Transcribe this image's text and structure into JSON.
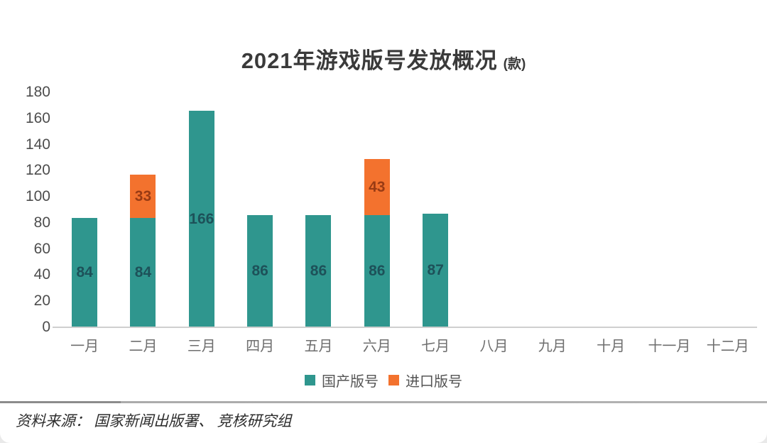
{
  "title": {
    "main": "2021年游戏版号发放概况",
    "unit": "(款)"
  },
  "colors": {
    "domestic": "#2F968E",
    "imported": "#F3722E",
    "domestic_label": "#1B4650",
    "imported_label": "#8A3210",
    "axis_line": "#CFCFCF"
  },
  "legend": [
    {
      "label": "国产版号",
      "color_key": "domestic"
    },
    {
      "label": "进口版号",
      "color_key": "imported"
    }
  ],
  "source": "资料来源： 国家新闻出版署、 竞核研究组",
  "chart_data": {
    "type": "bar",
    "stacked": true,
    "title": "2021年游戏版号发放概况 (款)",
    "categories": [
      "一月",
      "二月",
      "三月",
      "四月",
      "五月",
      "六月",
      "七月",
      "八月",
      "九月",
      "十月",
      "十一月",
      "十二月"
    ],
    "series": [
      {
        "name": "国产版号",
        "color": "#2F968E",
        "values": [
          84,
          84,
          166,
          86,
          86,
          86,
          87,
          null,
          null,
          null,
          null,
          null
        ]
      },
      {
        "name": "进口版号",
        "color": "#F3722E",
        "values": [
          null,
          33,
          null,
          null,
          null,
          43,
          null,
          null,
          null,
          null,
          null,
          null
        ]
      }
    ],
    "totals": [
      84,
      117,
      166,
      86,
      86,
      129,
      87,
      null,
      null,
      null,
      null,
      null
    ],
    "xlabel": "",
    "ylabel": "",
    "ylim": [
      0,
      180
    ],
    "yticks": [
      0,
      20,
      40,
      60,
      80,
      100,
      120,
      140,
      160,
      180
    ],
    "grid": false,
    "legend_position": "bottom",
    "data_labels": "inside-center"
  }
}
